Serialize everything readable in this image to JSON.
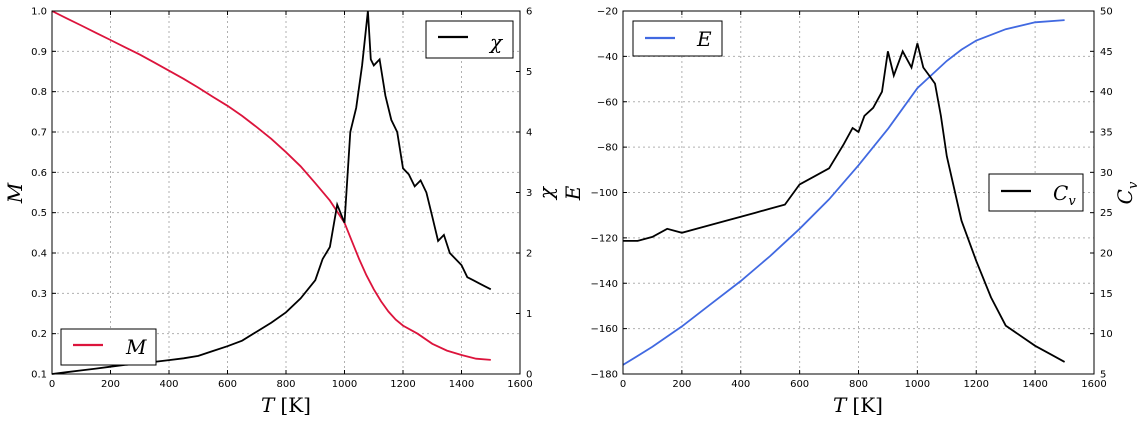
{
  "colors": {
    "magnetization": "#dc143c",
    "susceptibility": "#000000",
    "energy": "#4169e1",
    "heat_capacity": "#000000"
  },
  "chart_data": [
    {
      "type": "line",
      "xlabel_italic": "T",
      "xlabel_unit": "[K]",
      "ylabel": "M",
      "y2label": "χ",
      "xlim": [
        0,
        1600
      ],
      "ylim": [
        0.1,
        1.0
      ],
      "y2lim": [
        0,
        6
      ],
      "x_ticks": [
        "0",
        "200",
        "400",
        "600",
        "800",
        "1000",
        "1200",
        "1400",
        "1600"
      ],
      "y_ticks": [
        "0.1",
        "0.2",
        "0.3",
        "0.4",
        "0.5",
        "0.6",
        "0.7",
        "0.8",
        "0.9",
        "1.0"
      ],
      "y2_ticks": [
        "0",
        "1",
        "2",
        "3",
        "4",
        "5",
        "6"
      ],
      "grid": true,
      "series": [
        {
          "name": "M",
          "axis": "left",
          "legend_position": "lower-left",
          "x": [
            0,
            50,
            100,
            150,
            200,
            250,
            300,
            350,
            400,
            450,
            500,
            550,
            600,
            650,
            700,
            750,
            800,
            850,
            900,
            950,
            1000,
            1025,
            1050,
            1075,
            1100,
            1125,
            1150,
            1175,
            1200,
            1250,
            1300,
            1350,
            1400,
            1450,
            1500
          ],
          "y": [
            1.0,
            0.982,
            0.964,
            0.946,
            0.928,
            0.91,
            0.892,
            0.872,
            0.852,
            0.832,
            0.81,
            0.787,
            0.765,
            0.74,
            0.712,
            0.683,
            0.65,
            0.615,
            0.573,
            0.53,
            0.475,
            0.43,
            0.385,
            0.345,
            0.31,
            0.28,
            0.255,
            0.235,
            0.22,
            0.2,
            0.175,
            0.158,
            0.147,
            0.138,
            0.135
          ]
        },
        {
          "name": "χ",
          "axis": "right",
          "legend_position": "upper-right",
          "x": [
            0,
            50,
            100,
            150,
            200,
            250,
            300,
            350,
            400,
            450,
            500,
            550,
            600,
            650,
            700,
            750,
            800,
            850,
            900,
            925,
            950,
            975,
            1000,
            1020,
            1040,
            1060,
            1080,
            1090,
            1100,
            1120,
            1140,
            1160,
            1180,
            1200,
            1220,
            1240,
            1260,
            1280,
            1300,
            1320,
            1340,
            1360,
            1380,
            1400,
            1420,
            1440,
            1460,
            1480,
            1500
          ],
          "y": [
            0.0,
            0.03,
            0.06,
            0.09,
            0.12,
            0.15,
            0.17,
            0.2,
            0.23,
            0.26,
            0.3,
            0.38,
            0.46,
            0.55,
            0.7,
            0.85,
            1.02,
            1.25,
            1.55,
            1.9,
            2.1,
            2.8,
            2.5,
            4.0,
            4.4,
            5.1,
            6.0,
            5.2,
            5.1,
            5.2,
            4.6,
            4.2,
            4.0,
            3.4,
            3.3,
            3.1,
            3.2,
            3.0,
            2.6,
            2.2,
            2.3,
            2.0,
            1.9,
            1.8,
            1.6,
            1.55,
            1.5,
            1.45,
            1.4
          ]
        }
      ]
    },
    {
      "type": "line",
      "xlabel_italic": "T",
      "xlabel_unit": "[K]",
      "ylabel": "E",
      "y2label_main": "C",
      "y2label_sub": "v",
      "xlim": [
        0,
        1600
      ],
      "ylim": [
        -180,
        -20
      ],
      "y2lim": [
        5,
        50
      ],
      "x_ticks": [
        "0",
        "200",
        "400",
        "600",
        "800",
        "1000",
        "1200",
        "1400",
        "1600"
      ],
      "y_ticks": [
        "−180",
        "−160",
        "−140",
        "−120",
        "−100",
        "−80",
        "−60",
        "−40",
        "−20"
      ],
      "y2_ticks": [
        "5",
        "10",
        "15",
        "20",
        "25",
        "30",
        "35",
        "40",
        "45",
        "50"
      ],
      "grid": true,
      "series": [
        {
          "name": "E",
          "axis": "left",
          "legend_position": "upper-left",
          "x": [
            0,
            100,
            200,
            300,
            400,
            500,
            600,
            700,
            800,
            900,
            1000,
            1050,
            1100,
            1150,
            1200,
            1300,
            1400,
            1500
          ],
          "y": [
            -176,
            -168,
            -159,
            -149,
            -139,
            -128,
            -116,
            -103,
            -88,
            -72,
            -54,
            -48,
            -42,
            -37,
            -33,
            -28,
            -25,
            -24
          ]
        },
        {
          "name": "C",
          "name_sub": "v",
          "axis": "right",
          "legend_position": "center-right",
          "x": [
            0,
            50,
            100,
            150,
            200,
            250,
            300,
            350,
            400,
            450,
            500,
            550,
            600,
            650,
            700,
            750,
            780,
            800,
            820,
            850,
            880,
            900,
            920,
            950,
            980,
            1000,
            1020,
            1040,
            1060,
            1080,
            1100,
            1150,
            1200,
            1250,
            1300,
            1400,
            1450,
            1500
          ],
          "y": [
            21.5,
            21.5,
            22.0,
            23.0,
            22.5,
            23.0,
            23.5,
            24.0,
            24.5,
            25.0,
            25.5,
            26.0,
            28.5,
            29.5,
            30.5,
            33.5,
            35.5,
            35.0,
            37.0,
            38.0,
            40.0,
            45.0,
            42.0,
            45.0,
            43.0,
            46.0,
            43.0,
            42.0,
            41.0,
            37.0,
            32.0,
            24.0,
            19.0,
            14.5,
            11.0,
            8.5,
            7.5,
            6.5
          ]
        }
      ]
    }
  ]
}
